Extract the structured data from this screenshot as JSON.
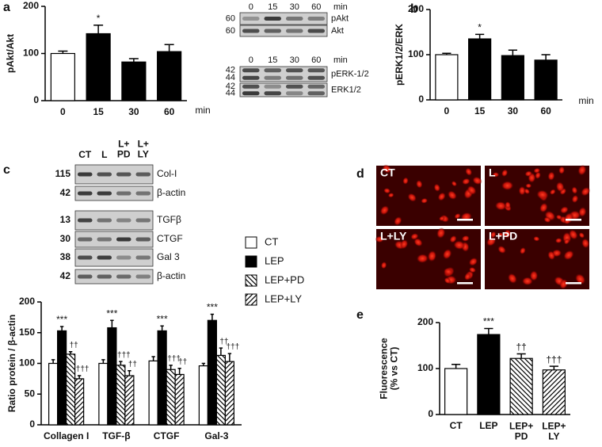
{
  "chart_data": [
    {
      "type": "bar",
      "panel": "a",
      "ylabel": "pAkt/Akt",
      "xlabel": "min",
      "categories": [
        "0",
        "15",
        "30",
        "60"
      ],
      "series": [
        {
          "values": [
            100,
            142,
            82,
            104
          ],
          "errors": [
            5,
            18,
            7,
            15
          ],
          "colors": [
            "#ffffff",
            "#000000",
            "#000000",
            "#000000"
          ],
          "annotations": [
            null,
            "*",
            null,
            null
          ]
        }
      ],
      "ylim": [
        0,
        200
      ],
      "yticks": [
        0,
        100,
        200
      ]
    },
    {
      "type": "bar",
      "panel": "b",
      "ylabel": "pERK1/2/ERK",
      "xlabel": "min",
      "categories": [
        "0",
        "15",
        "30",
        "60"
      ],
      "series": [
        {
          "values": [
            100,
            135,
            98,
            88
          ],
          "errors": [
            3,
            10,
            12,
            12
          ],
          "colors": [
            "#ffffff",
            "#000000",
            "#000000",
            "#000000"
          ],
          "annotations": [
            null,
            "*",
            null,
            null
          ]
        }
      ],
      "ylim": [
        0,
        200
      ],
      "yticks": [
        0,
        100,
        200
      ]
    },
    {
      "type": "grouped-bar",
      "ylabel": "Ratio protein / β-actin",
      "categories": [
        "Collagen I",
        "TGF-β",
        "CTGF",
        "Gal-3"
      ],
      "series": [
        {
          "name": "CT",
          "color": "#ffffff",
          "hatch": null,
          "values": [
            100,
            100,
            104,
            96
          ],
          "errors": [
            6,
            6,
            7,
            4
          ]
        },
        {
          "name": "LEP",
          "color": "#000000",
          "hatch": null,
          "values": [
            153,
            158,
            153,
            170
          ],
          "errors": [
            7,
            12,
            8,
            10
          ],
          "annotations": [
            "***",
            "***",
            "***",
            "***"
          ]
        },
        {
          "name": "LEP+PD",
          "color": "#ffffff",
          "hatch": "\\",
          "values": [
            115,
            97,
            90,
            113
          ],
          "errors": [
            4,
            6,
            7,
            12
          ],
          "annotations": [
            "††",
            "†††",
            "†††",
            "††"
          ]
        },
        {
          "name": "LEP+LY",
          "color": "#ffffff",
          "hatch": "/",
          "values": [
            75,
            80,
            82,
            103
          ],
          "errors": [
            5,
            8,
            10,
            13
          ],
          "annotations": [
            "†††",
            "††",
            "††",
            "†††"
          ]
        }
      ],
      "ylim": [
        0,
        200
      ],
      "yticks": [
        0,
        50,
        100,
        150,
        200
      ]
    },
    {
      "type": "bar",
      "panel": "e",
      "ylabel": "Fluorescence\n(% vs CT)",
      "categories": [
        "CT",
        "LEP",
        "LEP+\nPD",
        "LEP+\nLY"
      ],
      "series": [
        {
          "values": [
            100,
            174,
            122,
            97
          ],
          "errors": [
            9,
            13,
            10,
            8
          ],
          "colors": [
            "#ffffff",
            "#000000",
            "#ffffff",
            "#ffffff"
          ],
          "hatches": [
            null,
            null,
            "\\",
            "/"
          ],
          "annotations": [
            null,
            "***",
            "††",
            "†††"
          ]
        }
      ],
      "ylim": [
        0,
        200
      ],
      "yticks": [
        0,
        100,
        200
      ]
    }
  ],
  "panels": {
    "c": "c",
    "d": "d",
    "blots": [
      {
        "header": [
          "0",
          "15",
          "30",
          "60"
        ],
        "unit": "min",
        "rows": [
          {
            "mw": [
              "60"
            ],
            "label": "pAkt"
          },
          {
            "mw": [
              "60"
            ],
            "label": "Akt"
          }
        ]
      },
      {
        "header": [
          "0",
          "15",
          "30",
          "60"
        ],
        "unit": "min",
        "rows": [
          {
            "mw": [
              "42",
              "44"
            ],
            "label": "pERK-1/2"
          },
          {
            "mw": [
              "42",
              "44"
            ],
            "label": "ERK1/2"
          }
        ]
      },
      {
        "header": [
          "CT",
          "L",
          "L+\nPD",
          "L+\nLY"
        ],
        "rows": [
          {
            "mw": [
              "115"
            ],
            "label": "Col-I"
          },
          {
            "mw": [
              "42"
            ],
            "label": "β-actin"
          },
          {
            "mw": [
              "13"
            ],
            "label": "TGFβ"
          },
          {
            "mw": [
              "30"
            ],
            "label": "CTGF"
          },
          {
            "mw": [
              "38"
            ],
            "label": "Gal 3"
          },
          {
            "mw": [
              "42"
            ],
            "label": "β-actin"
          }
        ]
      }
    ],
    "micrographs": [
      "CT",
      "L",
      "L+LY",
      "L+PD"
    ]
  }
}
